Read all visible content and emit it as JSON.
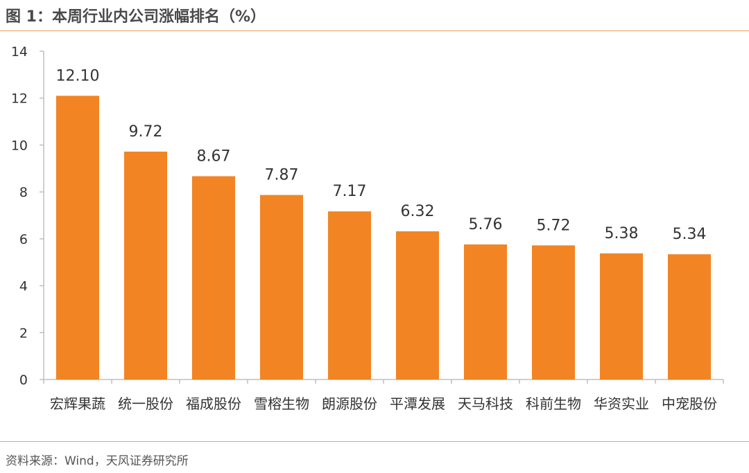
{
  "figure": {
    "title": "图 1：本周行业内公司涨幅排名（%）",
    "source": "资料来源：Wind，天风证券研究所"
  },
  "colors": {
    "bar": "#f28423",
    "axis": "#bfbfbf",
    "rule": "#f0a060",
    "text": "#333333"
  },
  "chart_data": {
    "type": "bar",
    "title": "本周行业内公司涨幅排名（%）",
    "xlabel": "",
    "ylabel": "",
    "categories": [
      "宏辉果蔬",
      "统一股份",
      "福成股份",
      "雪榕生物",
      "朗源股份",
      "平潭发展",
      "天马科技",
      "科前生物",
      "华资实业",
      "中宠股份"
    ],
    "values": [
      12.1,
      9.72,
      8.67,
      7.87,
      7.17,
      6.32,
      5.76,
      5.72,
      5.38,
      5.34
    ],
    "value_labels": [
      "12.10",
      "9.72",
      "8.67",
      "7.87",
      "7.17",
      "6.32",
      "5.76",
      "5.72",
      "5.38",
      "5.34"
    ],
    "ylim": [
      0,
      14
    ],
    "yticks": [
      0,
      2,
      4,
      6,
      8,
      10,
      12,
      14
    ],
    "grid": false,
    "legend": "none"
  }
}
